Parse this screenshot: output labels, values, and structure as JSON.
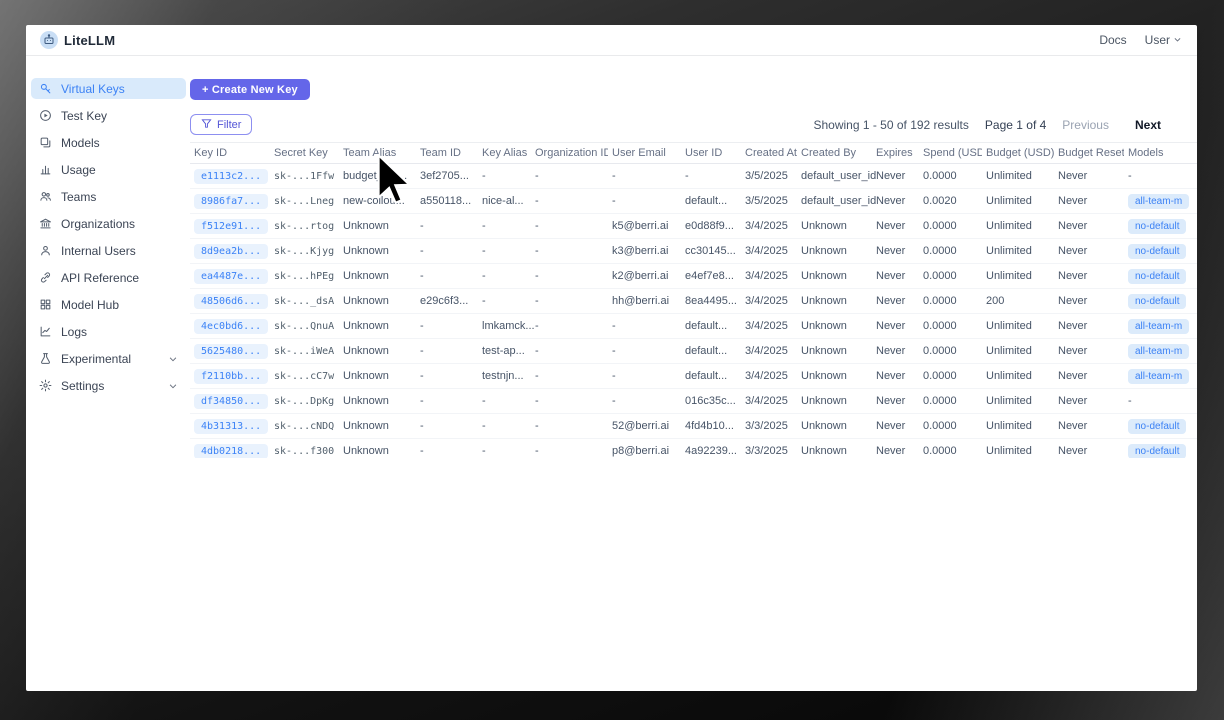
{
  "brand": {
    "name": "LiteLLM",
    "logo": "robot-logo-icon"
  },
  "topnav": {
    "docs_link": "Docs",
    "user_menu": "User"
  },
  "sidebar": {
    "items": [
      {
        "label": "Virtual Keys",
        "icon": "key-icon",
        "active": true
      },
      {
        "label": "Test Key",
        "icon": "play-circle-icon"
      },
      {
        "label": "Models",
        "icon": "layers-icon"
      },
      {
        "label": "Usage",
        "icon": "bar-chart-icon"
      },
      {
        "label": "Teams",
        "icon": "people-icon"
      },
      {
        "label": "Organizations",
        "icon": "bank-icon"
      },
      {
        "label": "Internal Users",
        "icon": "user-icon"
      },
      {
        "label": "API Reference",
        "icon": "link-icon"
      },
      {
        "label": "Model Hub",
        "icon": "grid-icon"
      },
      {
        "label": "Logs",
        "icon": "line-chart-icon"
      },
      {
        "label": "Experimental",
        "icon": "flask-icon",
        "chevron": true
      },
      {
        "label": "Settings",
        "icon": "gear-icon",
        "chevron": true
      }
    ]
  },
  "toolbar": {
    "create_key_button": "+ Create New Key",
    "filter_button": "Filter"
  },
  "pagination": {
    "showing_text": "Showing 1 - 50 of 192 results",
    "page_text": "Page 1 of 4",
    "previous_label": "Previous",
    "next_label": "Next"
  },
  "table": {
    "columns": [
      "Key ID",
      "Secret Key",
      "Team Alias",
      "Team ID",
      "Key Alias",
      "Organization ID",
      "User Email",
      "User ID",
      "Created At",
      "Created By",
      "Expires",
      "Spend (USD)",
      "Budget (USD)",
      "Budget Reset",
      "Models"
    ],
    "rows": [
      {
        "key_id": "e1113c2...",
        "secret_key": "sk-...1Ffw",
        "team_alias": "budget_tea...",
        "team_id": "3ef2705...",
        "key_alias": "-",
        "org_id": "-",
        "user_email": "-",
        "user_id": "-",
        "created_at": "3/5/2025",
        "created_by": "default_user_id",
        "expires": "Never",
        "spend": "0.0000",
        "budget": "Unlimited",
        "budget_reset": "Never",
        "models": "-"
      },
      {
        "key_id": "8986fa7...",
        "secret_key": "sk-...Lneg",
        "team_alias": "new-collou...",
        "team_id": "a550118...",
        "key_alias": "nice-al...",
        "org_id": "-",
        "user_email": "-",
        "user_id": "default...",
        "created_at": "3/5/2025",
        "created_by": "default_user_id",
        "expires": "Never",
        "spend": "0.0020",
        "budget": "Unlimited",
        "budget_reset": "Never",
        "models": "all-team-m"
      },
      {
        "key_id": "f512e91...",
        "secret_key": "sk-...rtog",
        "team_alias": "Unknown",
        "team_id": "-",
        "key_alias": "-",
        "org_id": "-",
        "user_email": "k5@berri.ai",
        "user_id": "e0d88f9...",
        "created_at": "3/4/2025",
        "created_by": "Unknown",
        "expires": "Never",
        "spend": "0.0000",
        "budget": "Unlimited",
        "budget_reset": "Never",
        "models": "no-default"
      },
      {
        "key_id": "8d9ea2b...",
        "secret_key": "sk-...Kjyg",
        "team_alias": "Unknown",
        "team_id": "-",
        "key_alias": "-",
        "org_id": "-",
        "user_email": "k3@berri.ai",
        "user_id": "cc30145...",
        "created_at": "3/4/2025",
        "created_by": "Unknown",
        "expires": "Never",
        "spend": "0.0000",
        "budget": "Unlimited",
        "budget_reset": "Never",
        "models": "no-default"
      },
      {
        "key_id": "ea4487e...",
        "secret_key": "sk-...hPEg",
        "team_alias": "Unknown",
        "team_id": "-",
        "key_alias": "-",
        "org_id": "-",
        "user_email": "k2@berri.ai",
        "user_id": "e4ef7e8...",
        "created_at": "3/4/2025",
        "created_by": "Unknown",
        "expires": "Never",
        "spend": "0.0000",
        "budget": "Unlimited",
        "budget_reset": "Never",
        "models": "no-default"
      },
      {
        "key_id": "48506d6...",
        "secret_key": "sk-..._dsA",
        "team_alias": "Unknown",
        "team_id": "e29c6f3...",
        "key_alias": "-",
        "org_id": "-",
        "user_email": "hh@berri.ai",
        "user_id": "8ea4495...",
        "created_at": "3/4/2025",
        "created_by": "Unknown",
        "expires": "Never",
        "spend": "0.0000",
        "budget": "200",
        "budget_reset": "Never",
        "models": "no-default"
      },
      {
        "key_id": "4ec0bd6...",
        "secret_key": "sk-...QnuA",
        "team_alias": "Unknown",
        "team_id": "-",
        "key_alias": "lmkamck...",
        "org_id": "-",
        "user_email": "-",
        "user_id": "default...",
        "created_at": "3/4/2025",
        "created_by": "Unknown",
        "expires": "Never",
        "spend": "0.0000",
        "budget": "Unlimited",
        "budget_reset": "Never",
        "models": "all-team-m"
      },
      {
        "key_id": "5625480...",
        "secret_key": "sk-...iWeA",
        "team_alias": "Unknown",
        "team_id": "-",
        "key_alias": "test-ap...",
        "org_id": "-",
        "user_email": "-",
        "user_id": "default...",
        "created_at": "3/4/2025",
        "created_by": "Unknown",
        "expires": "Never",
        "spend": "0.0000",
        "budget": "Unlimited",
        "budget_reset": "Never",
        "models": "all-team-m"
      },
      {
        "key_id": "f2110bb...",
        "secret_key": "sk-...cC7w",
        "team_alias": "Unknown",
        "team_id": "-",
        "key_alias": "testnjn...",
        "org_id": "-",
        "user_email": "-",
        "user_id": "default...",
        "created_at": "3/4/2025",
        "created_by": "Unknown",
        "expires": "Never",
        "spend": "0.0000",
        "budget": "Unlimited",
        "budget_reset": "Never",
        "models": "all-team-m"
      },
      {
        "key_id": "df34850...",
        "secret_key": "sk-...DpKg",
        "team_alias": "Unknown",
        "team_id": "-",
        "key_alias": "-",
        "org_id": "-",
        "user_email": "-",
        "user_id": "016c35c...",
        "created_at": "3/4/2025",
        "created_by": "Unknown",
        "expires": "Never",
        "spend": "0.0000",
        "budget": "Unlimited",
        "budget_reset": "Never",
        "models": "-"
      },
      {
        "key_id": "4b31313...",
        "secret_key": "sk-...cNDQ",
        "team_alias": "Unknown",
        "team_id": "-",
        "key_alias": "-",
        "org_id": "-",
        "user_email": "52@berri.ai",
        "user_id": "4fd4b10...",
        "created_at": "3/3/2025",
        "created_by": "Unknown",
        "expires": "Never",
        "spend": "0.0000",
        "budget": "Unlimited",
        "budget_reset": "Never",
        "models": "no-default"
      },
      {
        "key_id": "4db0218...",
        "secret_key": "sk-...f300",
        "team_alias": "Unknown",
        "team_id": "-",
        "key_alias": "-",
        "org_id": "-",
        "user_email": "p8@berri.ai",
        "user_id": "4a92239...",
        "created_at": "3/3/2025",
        "created_by": "Unknown",
        "expires": "Never",
        "spend": "0.0000",
        "budget": "Unlimited",
        "budget_reset": "Never",
        "models": "no-default"
      }
    ]
  },
  "colors": {
    "accent_indigo": "#6466e9",
    "link_blue": "#3b82f6",
    "key_pill_bg": "#e9f2fd",
    "active_item_bg": "#d9eafb",
    "header_text": "#667085",
    "cell_text": "#475467"
  }
}
